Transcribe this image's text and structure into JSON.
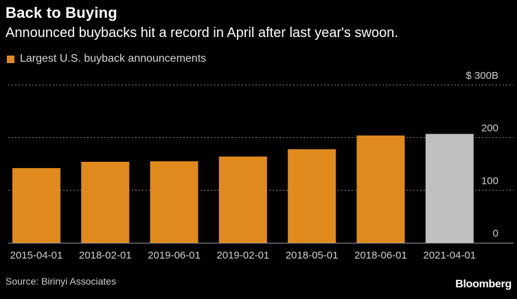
{
  "header": {
    "title": "Back to Buying",
    "subtitle": "Announced buybacks hit a record in April after last year's swoon."
  },
  "legend": {
    "label": "Largest U.S. buyback announcements"
  },
  "footer": {
    "source": "Source: Birinyi Associates",
    "brand": "Bloomberg"
  },
  "colors": {
    "accent": "#e08a1e",
    "highlight": "#c0c0c0",
    "background": "#000000",
    "grid": "#8a8a8a",
    "axis_text": "#cfcfcf"
  },
  "chart_data": {
    "type": "bar",
    "categories": [
      "2015-04-01",
      "2018-02-01",
      "2019-06-01",
      "2019-02-01",
      "2018-05-01",
      "2018-06-01",
      "2021-04-01"
    ],
    "values": [
      142,
      154,
      155,
      164,
      178,
      204,
      207
    ],
    "bar_colors": [
      "accent",
      "accent",
      "accent",
      "accent",
      "accent",
      "accent",
      "highlight"
    ],
    "series": [
      {
        "name": "Largest U.S. buyback announcements",
        "values": [
          142,
          154,
          155,
          164,
          178,
          204,
          207
        ]
      }
    ],
    "ylim": [
      0,
      300
    ],
    "yticks": [
      0,
      100,
      200,
      300
    ],
    "ytick_labels": [
      "0",
      "100",
      "200",
      "$ 300B"
    ],
    "xlabel": "",
    "ylabel": "",
    "grid": true,
    "legend_position": "top-left"
  }
}
